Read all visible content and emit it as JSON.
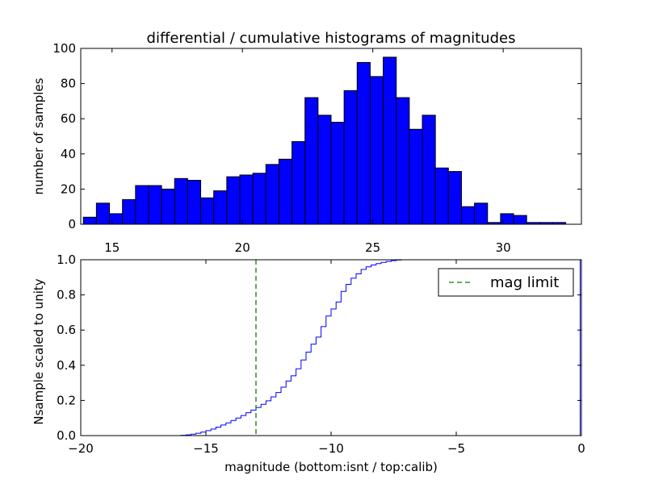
{
  "chart_data": [
    {
      "type": "bar",
      "title": "differential / cumulative histograms of magnitudes",
      "ylabel": "number of samples",
      "xlabel": "",
      "xlim": [
        13.8,
        33.0
      ],
      "ylim": [
        0,
        100
      ],
      "bin_width": 0.5,
      "bin_edges_start": 13.9,
      "counts": [
        4,
        12,
        6,
        14,
        22,
        22,
        20,
        26,
        25,
        15,
        19,
        27,
        28,
        29,
        34,
        37,
        47,
        72,
        62,
        58,
        76,
        92,
        84,
        95,
        72,
        54,
        62,
        32,
        30,
        10,
        12,
        1,
        6,
        5,
        1,
        1,
        1
      ],
      "bar_color": "#0000ff",
      "xticks": [
        15,
        20,
        25,
        30
      ],
      "xtick_labels": [
        "15",
        "20",
        "25",
        "30"
      ],
      "yticks": [
        0,
        20,
        40,
        60,
        80,
        100
      ],
      "ytick_labels": [
        "0",
        "20",
        "40",
        "60",
        "80",
        "100"
      ],
      "xticks_position": "bottom-outside"
    },
    {
      "type": "line",
      "subtype": "step",
      "xlabel": "magnitude (bottom:isnt / top:calib)",
      "ylabel": "Nsample scaled to unity",
      "xlim": [
        -20,
        0
      ],
      "ylim": [
        0,
        1
      ],
      "xticks": [
        -20,
        -15,
        -10,
        -5,
        0
      ],
      "xtick_labels": [
        "−20",
        "−15",
        "−10",
        "−5",
        "0"
      ],
      "yticks": [
        0,
        0.2,
        0.4,
        0.6,
        0.8,
        1.0
      ],
      "ytick_labels": [
        "0.0",
        "0.2",
        "0.4",
        "0.6",
        "0.8",
        "1.0"
      ],
      "series": [
        {
          "line_color": "#0000ff",
          "x": [
            -20,
            -16.2,
            -16.0,
            -15.8,
            -15.6,
            -15.4,
            -15.2,
            -15.0,
            -14.8,
            -14.6,
            -14.4,
            -14.2,
            -14.0,
            -13.8,
            -13.6,
            -13.4,
            -13.2,
            -13.0,
            -12.8,
            -12.6,
            -12.4,
            -12.2,
            -12.0,
            -11.8,
            -11.6,
            -11.4,
            -11.2,
            -11.0,
            -10.8,
            -10.6,
            -10.4,
            -10.2,
            -10.0,
            -9.8,
            -9.6,
            -9.4,
            -9.2,
            -9.0,
            -8.8,
            -8.6,
            -8.4,
            -8.2,
            -8.0,
            -7.8,
            -7.6,
            -7.4,
            -7.2,
            -0.05
          ],
          "y": [
            0.0,
            0.0,
            0.002,
            0.004,
            0.008,
            0.013,
            0.02,
            0.028,
            0.037,
            0.048,
            0.06,
            0.072,
            0.086,
            0.1,
            0.114,
            0.13,
            0.145,
            0.16,
            0.178,
            0.198,
            0.22,
            0.245,
            0.275,
            0.31,
            0.34,
            0.38,
            0.43,
            0.475,
            0.52,
            0.56,
            0.62,
            0.68,
            0.72,
            0.76,
            0.82,
            0.86,
            0.895,
            0.92,
            0.945,
            0.96,
            0.97,
            0.978,
            0.985,
            0.99,
            0.995,
            0.998,
            1.0,
            1.0
          ]
        },
        {
          "name": "mag limit",
          "type": "vline",
          "x": -13.0,
          "line_color": "#008000",
          "line_style": "dashed"
        }
      ],
      "legend": {
        "entries": [
          "mag limit"
        ],
        "placement": "top-right"
      }
    }
  ]
}
